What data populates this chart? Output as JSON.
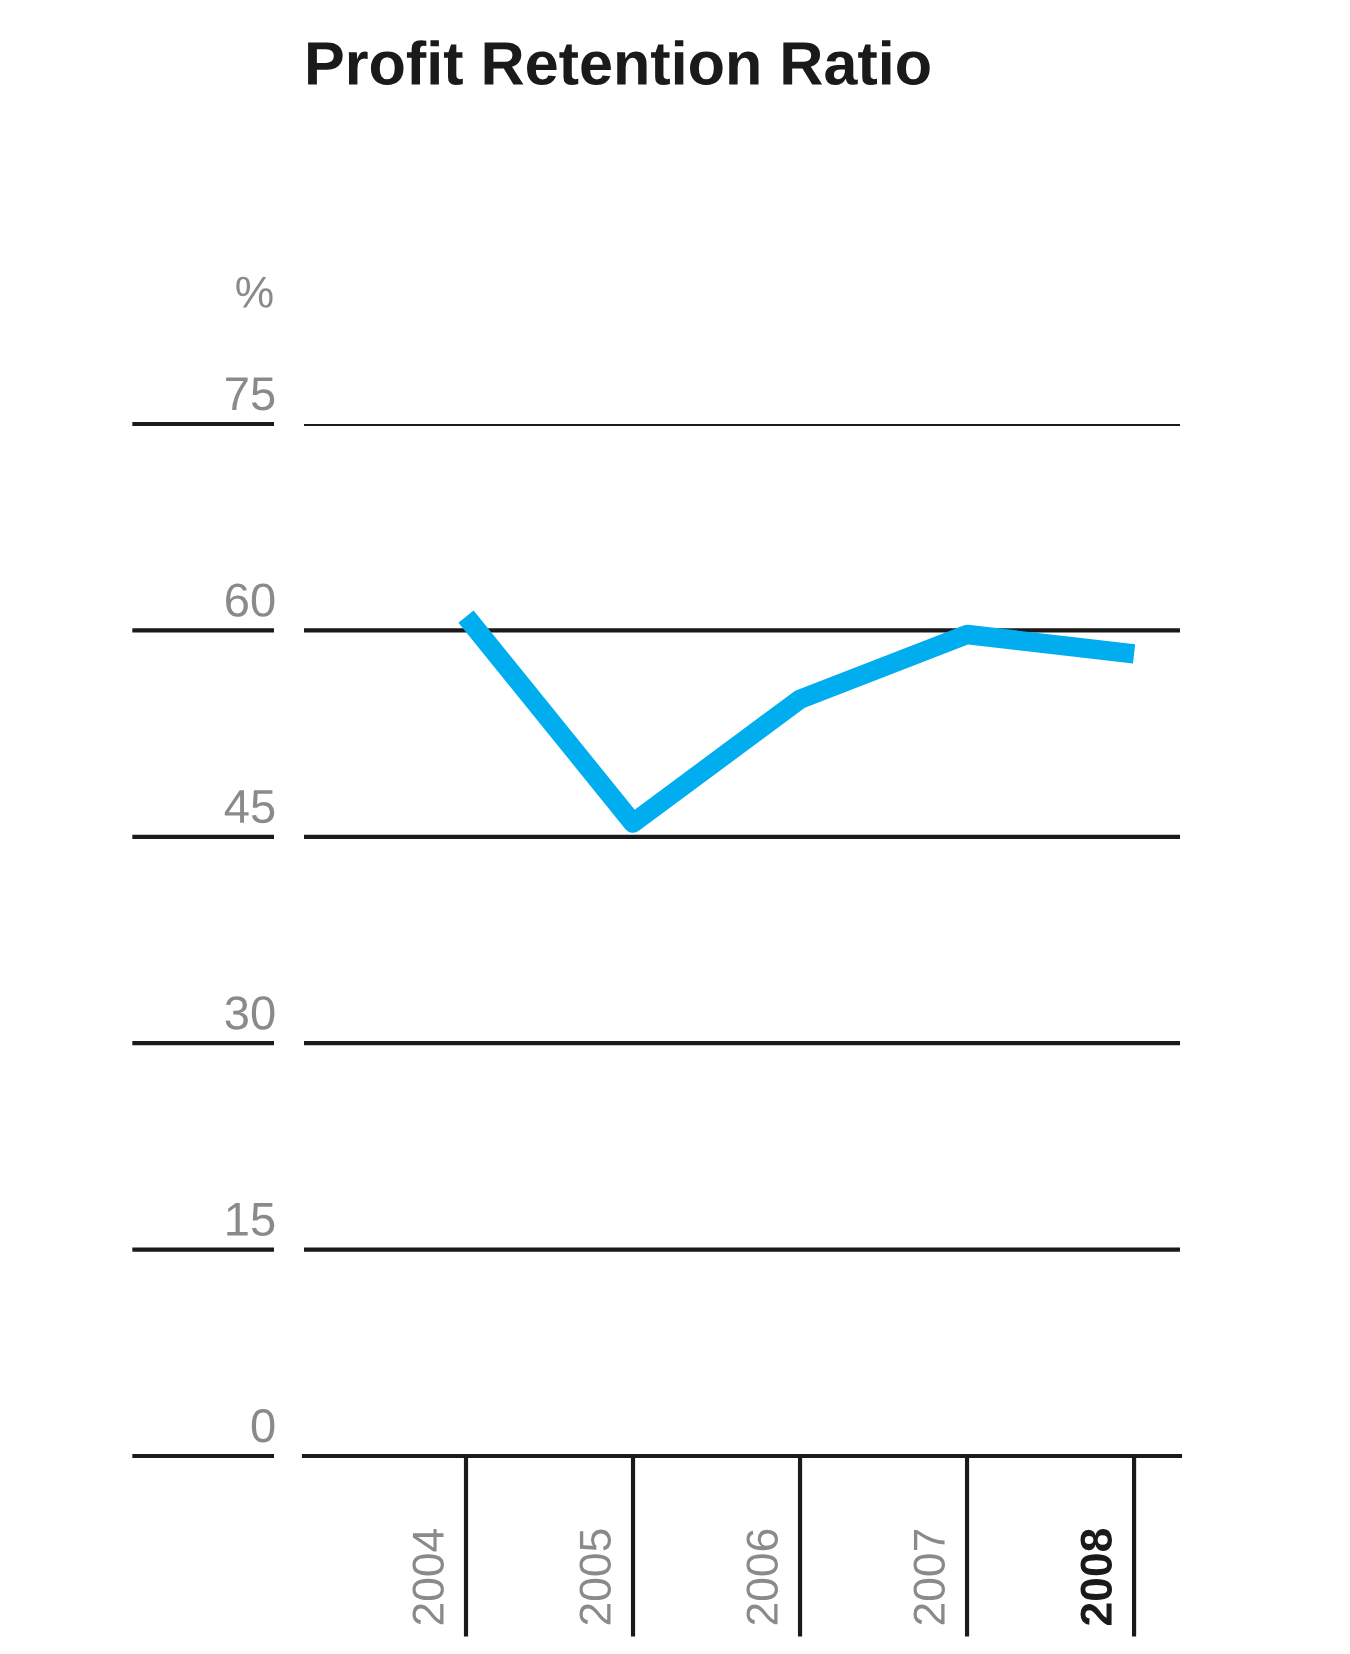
{
  "chart_data": {
    "type": "line",
    "title": "Profit Retention Ratio",
    "ylabel": "%",
    "categories": [
      "2004",
      "2005",
      "2006",
      "2007",
      "2008"
    ],
    "series": [
      {
        "color": "#00aeef",
        "values": [
          61,
          46,
          55,
          59.7,
          58.3
        ]
      }
    ],
    "ylim": [
      0,
      75
    ],
    "yticks": [
      0,
      15,
      30,
      45,
      60,
      75
    ],
    "grid": "y",
    "line_style": "solid"
  }
}
